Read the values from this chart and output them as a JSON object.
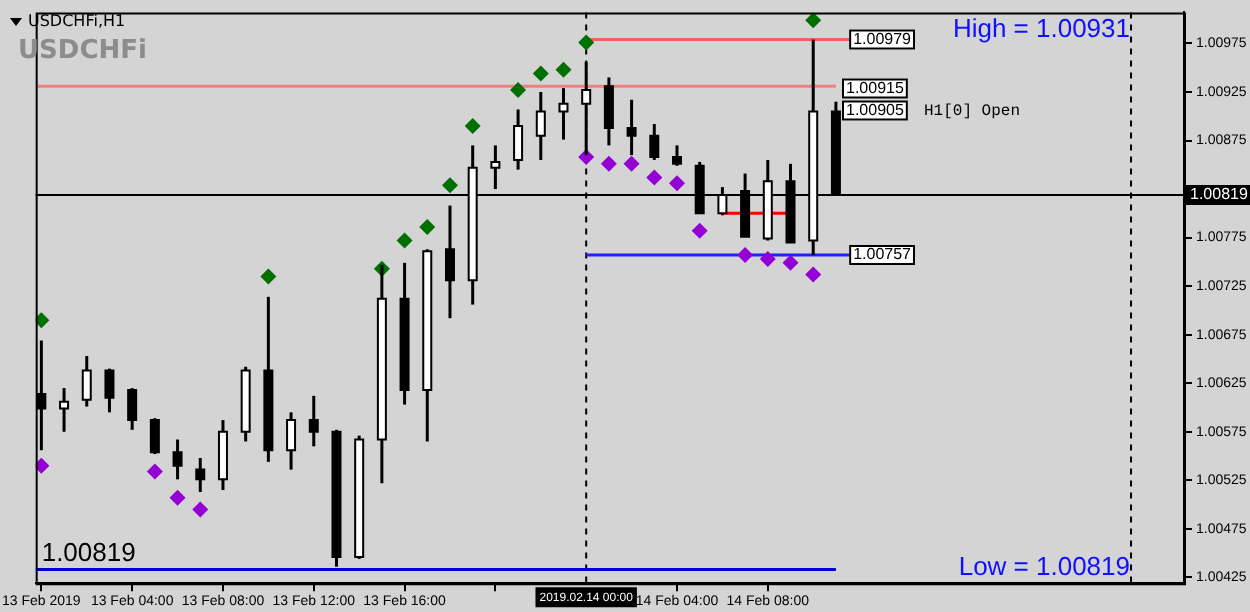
{
  "chart_data": {
    "type": "candlestick",
    "title": "USDCHFi,H1",
    "subtitle": "USDCHFi",
    "x": [
      "2019-02-13T00:00",
      "2019-02-13T01:00",
      "2019-02-13T02:00",
      "2019-02-13T03:00",
      "2019-02-13T04:00",
      "2019-02-13T05:00",
      "2019-02-13T06:00",
      "2019-02-13T07:00",
      "2019-02-13T08:00",
      "2019-02-13T09:00",
      "2019-02-13T10:00",
      "2019-02-13T11:00",
      "2019-02-13T12:00",
      "2019-02-13T13:00",
      "2019-02-13T14:00",
      "2019-02-13T15:00",
      "2019-02-13T16:00",
      "2019-02-13T17:00",
      "2019-02-13T18:00",
      "2019-02-13T19:00",
      "2019-02-13T20:00",
      "2019-02-13T21:00",
      "2019-02-13T22:00",
      "2019-02-13T23:00",
      "2019-02-14T00:00",
      "2019-02-14T01:00",
      "2019-02-14T02:00",
      "2019-02-14T03:00",
      "2019-02-14T04:00",
      "2019-02-14T05:00",
      "2019-02-14T06:00",
      "2019-02-14T07:00",
      "2019-02-14T08:00",
      "2019-02-14T09:00",
      "2019-02-14T10:00",
      "2019-02-14T11:00"
    ],
    "ohlc": [
      [
        1.00614,
        1.00669,
        1.00556,
        1.00599
      ],
      [
        1.00599,
        1.0062,
        1.00575,
        1.00606
      ],
      [
        1.00608,
        1.00653,
        1.00601,
        1.00638
      ],
      [
        1.00638,
        1.0064,
        1.00595,
        1.0061
      ],
      [
        1.00618,
        1.0062,
        1.00577,
        1.00587
      ],
      [
        1.00587,
        1.00589,
        1.00552,
        1.00554
      ],
      [
        1.00554,
        1.00567,
        1.00526,
        1.0054
      ],
      [
        1.00536,
        1.00548,
        1.00513,
        1.00526
      ],
      [
        1.00526,
        1.00587,
        1.00515,
        1.00575
      ],
      [
        1.00575,
        1.00642,
        1.00565,
        1.00638
      ],
      [
        1.00638,
        1.00714,
        1.00544,
        1.00556
      ],
      [
        1.00556,
        1.00595,
        1.00536,
        1.00587
      ],
      [
        1.00587,
        1.00612,
        1.0056,
        1.00575
      ],
      [
        1.00575,
        1.00577,
        1.00436,
        1.00446
      ],
      [
        1.00446,
        1.00571,
        1.00444,
        1.00567
      ],
      [
        1.00567,
        1.00747,
        1.00522,
        1.00712
      ],
      [
        1.00712,
        1.00749,
        1.00603,
        1.00618
      ],
      [
        1.00618,
        1.00763,
        1.00565,
        1.00761
      ],
      [
        1.00763,
        1.00808,
        1.00692,
        1.00731
      ],
      [
        1.00731,
        1.0087,
        1.00706,
        1.00847
      ],
      [
        1.00847,
        1.0087,
        1.00825,
        1.00853
      ],
      [
        1.00855,
        1.00907,
        1.00845,
        1.0089
      ],
      [
        1.0088,
        1.00925,
        1.00855,
        1.00905
      ],
      [
        1.00905,
        1.00929,
        1.00876,
        1.00913
      ],
      [
        1.00913,
        1.00956,
        1.0086,
        1.00927
      ],
      [
        1.00931,
        1.0094,
        1.0087,
        1.00888
      ],
      [
        1.00888,
        1.00917,
        1.0086,
        1.0088
      ],
      [
        1.0088,
        1.00892,
        1.00855,
        1.00858
      ],
      [
        1.00858,
        1.0087,
        1.00849,
        1.00851
      ],
      [
        1.00849,
        1.00853,
        1.008,
        1.008
      ],
      [
        1.008,
        1.00827,
        1.00798,
        1.00819
      ],
      [
        1.00823,
        1.00841,
        1.00776,
        1.00776
      ],
      [
        1.00774,
        1.00855,
        1.00772,
        1.00833
      ],
      [
        1.00833,
        1.00851,
        1.0077,
        1.0077
      ],
      [
        1.00772,
        1.00979,
        1.00757,
        1.00905
      ],
      [
        1.00905,
        1.00915,
        1.00819,
        1.00819
      ]
    ],
    "series": [
      {
        "type": "scatter",
        "marker": "diamond",
        "color": "#007000",
        "x": [
          "2019-02-13T00:00",
          "2019-02-13T10:00",
          "2019-02-13T15:00",
          "2019-02-13T16:00",
          "2019-02-13T17:00",
          "2019-02-13T18:00",
          "2019-02-13T19:00",
          "2019-02-13T21:00",
          "2019-02-13T22:00",
          "2019-02-13T23:00",
          "2019-02-14T00:00",
          "2019-02-14T10:00"
        ],
        "values": [
          1.0069,
          1.00735,
          1.00743,
          1.00772,
          1.00786,
          1.00829,
          1.0089,
          1.00927,
          1.00944,
          1.00948,
          1.00976,
          1.00999
        ]
      },
      {
        "type": "scatter",
        "marker": "diamond",
        "color": "#9400d3",
        "x": [
          "2019-02-13T00:00",
          "2019-02-13T05:00",
          "2019-02-13T06:00",
          "2019-02-13T07:00",
          "2019-02-14T00:00",
          "2019-02-14T01:00",
          "2019-02-14T02:00",
          "2019-02-14T03:00",
          "2019-02-14T04:00",
          "2019-02-14T05:00",
          "2019-02-14T07:00",
          "2019-02-14T08:00",
          "2019-02-14T09:00",
          "2019-02-14T10:00"
        ],
        "values": [
          1.0054,
          1.00534,
          1.00507,
          1.00495,
          1.00858,
          1.00851,
          1.00851,
          1.00837,
          1.00831,
          1.00782,
          1.00757,
          1.00753,
          1.00749,
          1.00737
        ]
      },
      {
        "type": "line",
        "marker": "none",
        "color": "#f06060",
        "x": [
          "2019-02-14T00:00",
          "2019-02-14T11:35"
        ],
        "values": [
          1.00979,
          1.00979
        ]
      },
      {
        "type": "line",
        "marker": "none",
        "color": "#2020ff",
        "x": [
          "2019-02-14T00:00",
          "2019-02-14T11:35"
        ],
        "values": [
          1.00757,
          1.00757
        ]
      },
      {
        "type": "line",
        "marker": "none",
        "color": "#ff0000",
        "x": [
          "2019-02-14T06:00",
          "2019-02-14T09:00"
        ],
        "values": [
          1.008,
          1.008
        ]
      },
      {
        "type": "line",
        "marker": "none",
        "color": "#f08080",
        "x": [
          "2019-02-12T23:45",
          "2019-02-14T11:00"
        ],
        "values": [
          1.00931,
          1.00931
        ]
      },
      {
        "type": "line",
        "marker": "none",
        "color": "#0000cd",
        "x": [
          "2019-02-12T23:45",
          "2019-02-14T11:00"
        ],
        "values": [
          1.00433,
          1.00433
        ]
      }
    ],
    "ref_lines": [
      {
        "axis": "y",
        "value": 1.00819,
        "label": "1.00819",
        "color": "#000000"
      },
      {
        "axis": "x",
        "value": "2019-02-14T00:00",
        "label": "2019.02.14 00:00",
        "color": "#000000",
        "line_style": "dotted"
      },
      {
        "axis": "x",
        "value": "2019-02-15T00:00",
        "color": "#000000",
        "line_style": "dotted"
      }
    ],
    "annotations": [
      "High = 1.00931",
      "Low = 1.00819",
      "1.00819",
      "H1[0] Open",
      "1.00915",
      "1.00905",
      {
        "text": "1.00979",
        "x": "2019-02-14T11:35",
        "y": 1.00979
      },
      {
        "text": "1.00757",
        "x": "2019-02-14T11:35",
        "y": 1.00757
      }
    ],
    "xlim": [
      "2019-02-12T23:45",
      "2019-02-15T02:20"
    ],
    "xticks": [
      {
        "value": "2019-02-13T00:00",
        "label": "13 Feb 2019"
      },
      {
        "value": "2019-02-13T04:00",
        "label": "13 Feb 04:00"
      },
      {
        "value": "2019-02-13T08:00",
        "label": "13 Feb 08:00"
      },
      {
        "value": "2019-02-13T12:00",
        "label": "13 Feb 12:00"
      },
      {
        "value": "2019-02-13T16:00",
        "label": "13 Feb 16:00"
      },
      {
        "value": "2019-02-13T20:00",
        "label": null
      },
      {
        "value": "2019-02-14T04:00",
        "label": "14 Feb 04:00"
      },
      {
        "value": "2019-02-14T08:00",
        "label": "14 Feb 08:00"
      }
    ],
    "ylim": [
      1.00419,
      1.01007
    ],
    "yticks": [
      {
        "value": 1.00425,
        "label": "1.00425"
      },
      {
        "value": 1.00475,
        "label": "1.00475"
      },
      {
        "value": 1.00525,
        "label": "1.00525"
      },
      {
        "value": 1.00575,
        "label": "1.00575"
      },
      {
        "value": 1.00625,
        "label": "1.00625"
      },
      {
        "value": 1.00675,
        "label": "1.00675"
      },
      {
        "value": 1.00725,
        "label": "1.00725"
      },
      {
        "value": 1.00775,
        "label": "1.00775"
      },
      {
        "value": 1.00875,
        "label": "1.00875"
      },
      {
        "value": 1.00925,
        "label": "1.00925"
      },
      {
        "value": 1.00975,
        "label": "1.00975"
      }
    ],
    "grid": false,
    "legend": false
  }
}
